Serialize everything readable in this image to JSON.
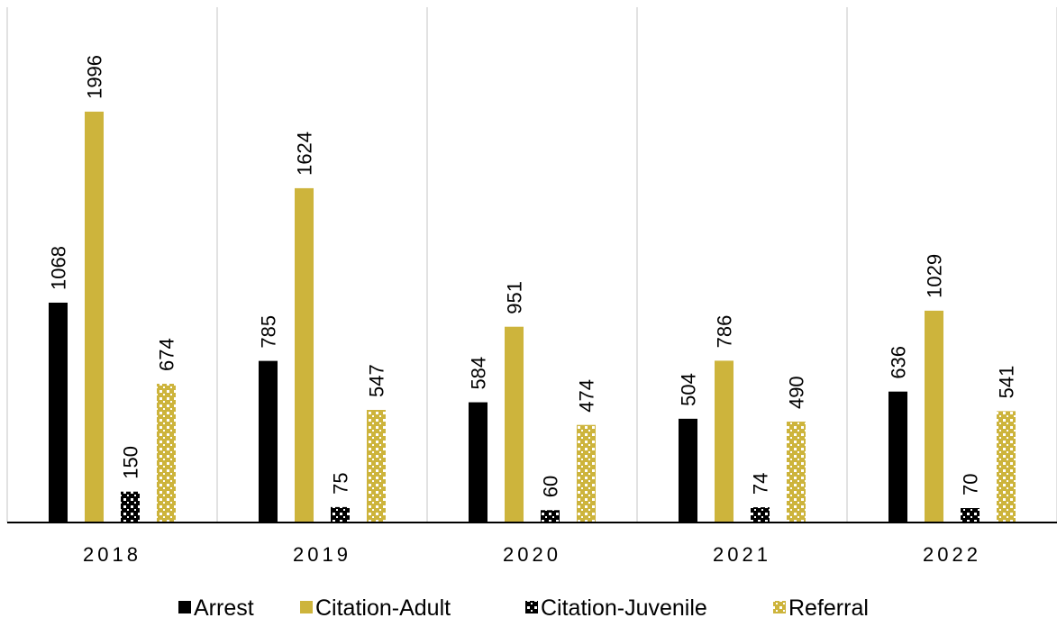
{
  "chart_data": {
    "type": "bar",
    "categories": [
      "2018",
      "2019",
      "2020",
      "2021",
      "2022"
    ],
    "series": [
      {
        "name": "Arrest",
        "values": [
          1068,
          785,
          584,
          504,
          636
        ],
        "color": "#000000",
        "pattern": "solid"
      },
      {
        "name": "Citation-Adult",
        "values": [
          1996,
          1624,
          951,
          786,
          1029
        ],
        "color": "#CDB43C",
        "pattern": "solid"
      },
      {
        "name": "Citation-Juvenile",
        "values": [
          150,
          75,
          60,
          74,
          70
        ],
        "color": "#000000",
        "pattern": "checker"
      },
      {
        "name": "Referral",
        "values": [
          674,
          547,
          474,
          490,
          541
        ],
        "color": "#CDB43C",
        "pattern": "checker"
      }
    ],
    "ylim": [
      0,
      2500
    ],
    "grid": "vertical category separators",
    "legend": "bottom-center",
    "data_labels": "rotated, above bars"
  }
}
